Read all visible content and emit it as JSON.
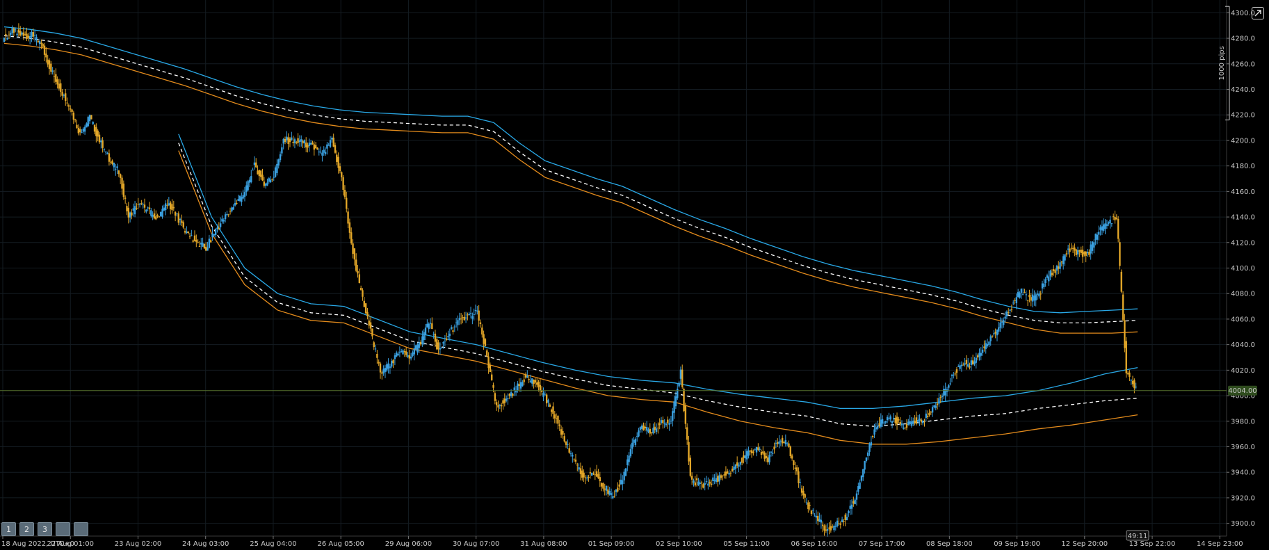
{
  "chart_data": {
    "type": "candlestick",
    "title": "",
    "price_axis": {
      "ylim": [
        3890,
        4310
      ],
      "tick_labels": [
        "4300.0",
        "4280.0",
        "4260.0",
        "4240.0",
        "4220.0",
        "4200.0",
        "4180.0",
        "4160.0",
        "4140.0",
        "4120.0",
        "4100.0",
        "4080.0",
        "4060.0",
        "4040.0",
        "4020.0",
        "4000.0",
        "3980.0",
        "3960.0",
        "3940.0",
        "3920.0",
        "3900.0"
      ],
      "current_price_label": "4004.00",
      "current_price": 4004,
      "scale_label": "1000 pips",
      "scale_range": [
        4216,
        4305
      ]
    },
    "time_axis": {
      "tick_labels": [
        "18 Aug 2022, UTC+0",
        "22 Aug 01:00",
        "23 Aug 02:00",
        "24 Aug 03:00",
        "25 Aug 04:00",
        "26 Aug 05:00",
        "29 Aug 06:00",
        "30 Aug 07:00",
        "31 Aug 08:00",
        "01 Sep 09:00",
        "02 Sep 10:00",
        "05 Sep 11:00",
        "06 Sep 16:00",
        "07 Sep 17:00",
        "08 Sep 18:00",
        "09 Sep 19:00",
        "12 Sep 20:00",
        "13 Sep 22:00",
        "14 Sep 23:00"
      ],
      "countdown_label": "49:11"
    },
    "price_series": [
      4280,
      4285,
      4283,
      4282,
      4275,
      4255,
      4240,
      4225,
      4205,
      4218,
      4200,
      4185,
      4175,
      4140,
      4150,
      4145,
      4138,
      4152,
      4140,
      4128,
      4120,
      4115,
      4130,
      4140,
      4150,
      4158,
      4182,
      4165,
      4172,
      4200,
      4200,
      4198,
      4195,
      4188,
      4200,
      4170,
      4120,
      4080,
      4050,
      4018,
      4025,
      4035,
      4030,
      4040,
      4058,
      4035,
      4048,
      4058,
      4062,
      4065,
      4030,
      3990,
      3998,
      4005,
      4015,
      4010,
      3998,
      3985,
      3965,
      3948,
      3935,
      3940,
      3930,
      3920,
      3935,
      3962,
      3975,
      3972,
      3978,
      3980,
      4018,
      3935,
      3930,
      3932,
      3936,
      3940,
      3948,
      3955,
      3960,
      3950,
      3965,
      3962,
      3938,
      3915,
      3905,
      3895,
      3898,
      3905,
      3920,
      3948,
      3975,
      3980,
      3982,
      3975,
      3980,
      3980,
      3990,
      4000,
      4015,
      4025,
      4025,
      4035,
      4045,
      4055,
      4068,
      4082,
      4075,
      4080,
      4095,
      4100,
      4115,
      4112,
      4110,
      4128,
      4135,
      4140,
      4020,
      4004
    ],
    "bands": [
      {
        "name": "",
        "start": 0,
        "upper": [
          4289,
          4287,
          4284,
          4280,
          4274,
          4268,
          4262,
          4256,
          4249,
          4242,
          4236,
          4231,
          4227,
          4224,
          4222,
          4221,
          4220,
          4219,
          4219,
          4214,
          4198,
          4184,
          4177,
          4170,
          4164,
          4155,
          4146,
          4138,
          4131,
          4123,
          4116,
          4109,
          4103,
          4098,
          4094,
          4090,
          4086,
          4081,
          4075,
          4070,
          4066,
          4065,
          4066,
          4067,
          4068
        ],
        "middle": [
          4282,
          4280,
          4277,
          4273,
          4267,
          4261,
          4255,
          4249,
          4242,
          4235,
          4229,
          4224,
          4220,
          4217,
          4215,
          4214,
          4213,
          4212,
          4212,
          4207,
          4191,
          4177,
          4170,
          4163,
          4157,
          4148,
          4139,
          4131,
          4124,
          4116,
          4109,
          4102,
          4096,
          4091,
          4087,
          4083,
          4079,
          4074,
          4068,
          4063,
          4059,
          4057,
          4057,
          4058,
          4059
        ],
        "lower": [
          4276,
          4274,
          4271,
          4267,
          4261,
          4255,
          4249,
          4243,
          4236,
          4229,
          4223,
          4218,
          4214,
          4211,
          4209,
          4208,
          4207,
          4206,
          4206,
          4201,
          4185,
          4171,
          4164,
          4157,
          4151,
          4142,
          4133,
          4125,
          4118,
          4110,
          4103,
          4096,
          4090,
          4085,
          4081,
          4077,
          4073,
          4068,
          4062,
          4057,
          4052,
          4049,
          4049,
          4049,
          4050
        ]
      },
      {
        "name": "",
        "start": 18,
        "upper": [
          4205,
          4140,
          4100,
          4080,
          4072,
          4070,
          4060,
          4050,
          4045,
          4040,
          4033,
          4026,
          4020,
          4015,
          4012,
          4010,
          4005,
          4001,
          3998,
          3995,
          3990,
          3990,
          3992,
          3995,
          3998,
          4000,
          4004,
          4010,
          4017,
          4022
        ],
        "middle": [
          4198,
          4133,
          4093,
          4073,
          4065,
          4063,
          4053,
          4043,
          4038,
          4033,
          4026,
          4019,
          4013,
          4008,
          4005,
          4002,
          3996,
          3991,
          3987,
          3984,
          3978,
          3976,
          3978,
          3981,
          3984,
          3986,
          3990,
          3993,
          3996,
          3998
        ],
        "lower": [
          4192,
          4127,
          4087,
          4067,
          4059,
          4057,
          4047,
          4037,
          4032,
          4027,
          4020,
          4013,
          4006,
          4000,
          3997,
          3995,
          3987,
          3980,
          3975,
          3971,
          3965,
          3962,
          3962,
          3964,
          3967,
          3970,
          3974,
          3977,
          3981,
          3985
        ]
      }
    ]
  },
  "workspace_buttons": [
    "1",
    "2",
    "3",
    "",
    ""
  ],
  "icons": {
    "corner": "expand-icon"
  },
  "colors": {
    "background": "#000000",
    "grid": "#141c22",
    "bull": "#3aa0e0",
    "bear": "#e2a628",
    "band_upper": "#29a8e6",
    "band_lower": "#e38b1c",
    "band_middle": "#ffffff",
    "price_line": "#55702e",
    "price_badge": "#2f4c1e",
    "axis_text": "#c8c8c8"
  }
}
